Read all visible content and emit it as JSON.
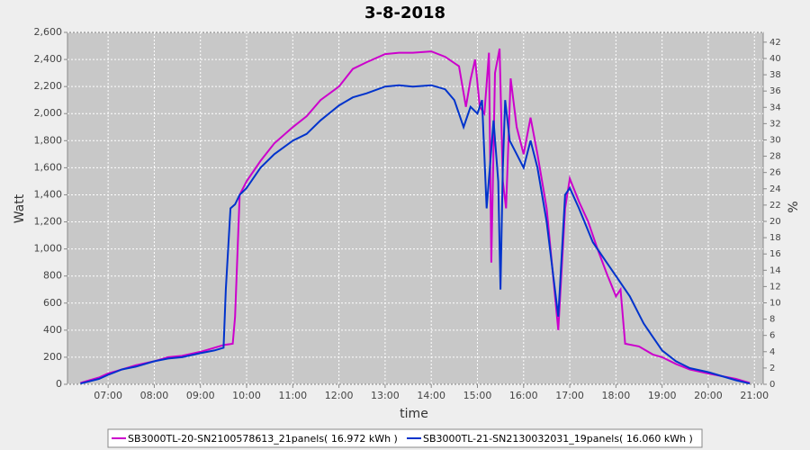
{
  "chart_data": {
    "type": "line",
    "title": "3-8-2018",
    "x_label": "time",
    "y_label": "Watt",
    "y2_label": "%",
    "xlim": [
      6.12,
      21.19
    ],
    "xticks": [
      {
        "value": 7,
        "label": "07:00"
      },
      {
        "value": 8,
        "label": "08:00"
      },
      {
        "value": 9,
        "label": "09:00"
      },
      {
        "value": 10,
        "label": "10:00"
      },
      {
        "value": 11,
        "label": "11:00"
      },
      {
        "value": 12,
        "label": "12:00"
      },
      {
        "value": 13,
        "label": "13:00"
      },
      {
        "value": 14,
        "label": "14:00"
      },
      {
        "value": 15,
        "label": "15:00"
      },
      {
        "value": 16,
        "label": "16:00"
      },
      {
        "value": 17,
        "label": "17:00"
      },
      {
        "value": 18,
        "label": "18:00"
      },
      {
        "value": 19,
        "label": "19:00"
      },
      {
        "value": 20,
        "label": "20:00"
      },
      {
        "value": 21,
        "label": "21:00"
      }
    ],
    "ylim": [
      0,
      2600
    ],
    "yticks": [
      0,
      200,
      400,
      600,
      800,
      {
        "value": 1000,
        "label": "1,000"
      },
      {
        "value": 1200,
        "label": "1,200"
      },
      {
        "value": 1400,
        "label": "1,400"
      },
      {
        "value": 1600,
        "label": "1,600"
      },
      {
        "value": 1800,
        "label": "1,800"
      },
      {
        "value": 2000,
        "label": "2,000"
      },
      {
        "value": 2200,
        "label": "2,200"
      },
      {
        "value": 2400,
        "label": "2,400"
      },
      {
        "value": 2600,
        "label": "2,600"
      }
    ],
    "y2lim": [
      0,
      43.2
    ],
    "y2ticks": [
      0,
      2,
      4,
      6,
      8,
      10,
      12,
      14,
      16,
      18,
      20,
      22,
      24,
      26,
      28,
      30,
      32,
      34,
      36,
      38,
      40,
      42
    ],
    "grid": true,
    "series": [
      {
        "name": "SB3000TL-20-SN2100578613_21panels( 16.972 kWh )",
        "color": "#cc00cc",
        "x": [
          6.4,
          6.6,
          6.8,
          7.0,
          7.3,
          7.6,
          8.0,
          8.3,
          8.6,
          9.0,
          9.3,
          9.5,
          9.7,
          9.75,
          9.85,
          10.0,
          10.3,
          10.6,
          11.0,
          11.3,
          11.6,
          12.0,
          12.3,
          12.6,
          13.0,
          13.3,
          13.6,
          14.0,
          14.3,
          14.6,
          14.75,
          14.85,
          14.95,
          15.05,
          15.15,
          15.25,
          15.3,
          15.38,
          15.48,
          15.55,
          15.62,
          15.72,
          15.85,
          16.0,
          16.15,
          16.3,
          16.5,
          16.75,
          16.9,
          17.0,
          17.2,
          17.4,
          17.6,
          17.8,
          18.0,
          18.1,
          18.2,
          18.5,
          18.8,
          19.0,
          19.3,
          19.6,
          20.0,
          20.3,
          20.6,
          20.9
        ],
        "values": [
          10,
          30,
          50,
          80,
          110,
          140,
          170,
          200,
          210,
          240,
          270,
          290,
          300,
          500,
          1400,
          1500,
          1650,
          1780,
          1900,
          1980,
          2100,
          2200,
          2330,
          2380,
          2440,
          2450,
          2450,
          2460,
          2420,
          2350,
          2050,
          2250,
          2400,
          2050,
          2000,
          2450,
          900,
          2300,
          2480,
          1500,
          1300,
          2260,
          1900,
          1700,
          1970,
          1700,
          1300,
          400,
          1300,
          1520,
          1350,
          1200,
          1000,
          820,
          650,
          700,
          300,
          280,
          220,
          200,
          150,
          110,
          80,
          60,
          40,
          10
        ]
      },
      {
        "name": "SB3000TL-21-SN2130032031_19panels( 16.060 kWh )",
        "color": "#0033cc",
        "x": [
          6.4,
          6.8,
          7.0,
          7.3,
          7.6,
          8.0,
          8.3,
          8.6,
          9.0,
          9.3,
          9.5,
          9.55,
          9.65,
          9.75,
          9.85,
          10.0,
          10.3,
          10.6,
          11.0,
          11.3,
          11.6,
          12.0,
          12.3,
          12.6,
          13.0,
          13.3,
          13.6,
          14.0,
          14.3,
          14.5,
          14.7,
          14.85,
          15.0,
          15.1,
          15.2,
          15.35,
          15.45,
          15.5,
          15.55,
          15.6,
          15.7,
          15.85,
          16.0,
          16.15,
          16.3,
          16.5,
          16.75,
          16.9,
          17.0,
          17.2,
          17.5,
          17.8,
          18.0,
          18.3,
          18.6,
          18.8,
          19.0,
          19.3,
          19.6,
          20.0,
          20.3,
          20.6,
          20.9
        ],
        "values": [
          5,
          40,
          70,
          110,
          130,
          170,
          190,
          200,
          230,
          250,
          270,
          700,
          1300,
          1330,
          1400,
          1450,
          1600,
          1700,
          1800,
          1850,
          1950,
          2060,
          2120,
          2150,
          2200,
          2210,
          2200,
          2210,
          2180,
          2100,
          1900,
          2050,
          2000,
          2100,
          1300,
          1950,
          1500,
          700,
          1600,
          2100,
          1800,
          1700,
          1600,
          1800,
          1600,
          1200,
          500,
          1400,
          1450,
          1300,
          1050,
          900,
          800,
          650,
          450,
          350,
          250,
          170,
          120,
          90,
          60,
          30,
          5
        ]
      }
    ]
  }
}
